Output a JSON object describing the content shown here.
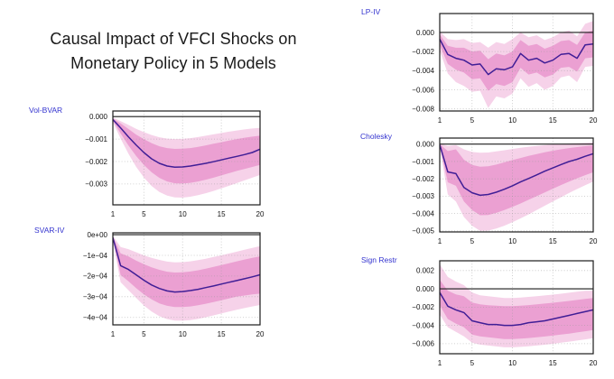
{
  "title": {
    "lines": [
      "Causal Impact of VFCI Shocks on",
      "Monetary Policy in 5 Models"
    ]
  },
  "colors": {
    "band_outer": "#f6d2e9",
    "band_inner": "#eba0d2",
    "median_line": "#401e96",
    "model_label": "#3434cf",
    "axis_frame": "#1b1b1b",
    "grid": "#9a9a9a",
    "tick_text": "#111111",
    "title_text": "#191919"
  },
  "x_values": [
    1,
    2,
    3,
    4,
    5,
    6,
    7,
    8,
    9,
    10,
    11,
    12,
    13,
    14,
    15,
    16,
    17,
    18,
    19,
    20
  ],
  "xtick_values": [
    1,
    5,
    10,
    15,
    20
  ],
  "xtick_labels": [
    "1",
    "5",
    "10",
    "15",
    "20"
  ],
  "chart_data": [
    {
      "type": "line",
      "model": "Vol-BVAR",
      "label": "Vol-BVAR",
      "ylim": [
        0.00025,
        -0.00393
      ],
      "ytick_values": [
        0,
        -0.001,
        -0.002,
        -0.003
      ],
      "ytick_labels": [
        "0.000",
        "−0.001",
        "−0.002",
        "−0.003"
      ],
      "series": {
        "median": [
          -0.00013,
          -0.0005,
          -0.0009,
          -0.00126,
          -0.0016,
          -0.00188,
          -0.00208,
          -0.0022,
          -0.00225,
          -0.00224,
          -0.0022,
          -0.00214,
          -0.00208,
          -0.00201,
          -0.00193,
          -0.00185,
          -0.00177,
          -0.00169,
          -0.0016,
          -0.00145
        ],
        "inner_band_upper": [
          -8e-05,
          -0.0003,
          -0.00055,
          -0.0008,
          -0.001,
          -0.00118,
          -0.00132,
          -0.0014,
          -0.00144,
          -0.00143,
          -0.0014,
          -0.00135,
          -0.00128,
          -0.00121,
          -0.00114,
          -0.00107,
          -0.001,
          -0.00094,
          -0.00089,
          -0.00085
        ],
        "inner_band_lower": [
          -0.00018,
          -0.00075,
          -0.00128,
          -0.00175,
          -0.00215,
          -0.00248,
          -0.00273,
          -0.00289,
          -0.00297,
          -0.00298,
          -0.00295,
          -0.00289,
          -0.00281,
          -0.00272,
          -0.00262,
          -0.00252,
          -0.00242,
          -0.00233,
          -0.00224,
          -0.00215
        ],
        "outer_band_upper": [
          -4e-05,
          -0.0002,
          -0.00037,
          -0.00054,
          -0.00069,
          -0.00082,
          -0.00092,
          -0.00098,
          -0.001,
          -0.00099,
          -0.00096,
          -0.00091,
          -0.00085,
          -0.00079,
          -0.00073,
          -0.00067,
          -0.00062,
          -0.00057,
          -0.00053,
          -0.0005
        ],
        "outer_band_lower": [
          -0.00024,
          -0.00098,
          -0.00165,
          -0.00223,
          -0.00271,
          -0.00309,
          -0.00336,
          -0.00352,
          -0.0036,
          -0.00361,
          -0.00357,
          -0.0035,
          -0.00341,
          -0.00331,
          -0.0032,
          -0.00308,
          -0.00296,
          -0.00284,
          -0.00272,
          -0.0026
        ]
      }
    },
    {
      "type": "line",
      "model": "SVAR-IV",
      "label": "SVAR-IV",
      "ylim": [
        9e-06,
        -0.000436
      ],
      "ytick_values": [
        0,
        -0.0001,
        -0.0002,
        -0.0003,
        -0.0004
      ],
      "ytick_labels": [
        "0e+00",
        "−1e−04",
        "−2e−04",
        "−3e−04",
        "−4e−04"
      ],
      "series": {
        "median": [
          -1.5e-05,
          -0.00015,
          -0.000168,
          -0.000194,
          -0.00022,
          -0.000243,
          -0.00026,
          -0.000272,
          -0.000277,
          -0.000275,
          -0.00027,
          -0.000264,
          -0.000256,
          -0.000248,
          -0.000239,
          -0.00023,
          -0.000222,
          -0.000213,
          -0.000204,
          -0.000194
        ],
        "inner_band_upper": [
          -1e-05,
          -9e-05,
          -0.000105,
          -0.000125,
          -0.000143,
          -0.000158,
          -0.00017,
          -0.000179,
          -0.000183,
          -0.000182,
          -0.000178,
          -0.000172,
          -0.000164,
          -0.000156,
          -0.000147,
          -0.000138,
          -0.000129,
          -0.00012,
          -0.000112,
          -0.000105
        ],
        "inner_band_lower": [
          -2e-05,
          -0.000195,
          -0.000225,
          -0.000258,
          -0.000288,
          -0.000313,
          -0.000332,
          -0.000344,
          -0.00035,
          -0.00035,
          -0.000347,
          -0.000341,
          -0.000334,
          -0.000326,
          -0.000317,
          -0.000308,
          -0.000299,
          -0.000294,
          -0.000289,
          -0.000285
        ],
        "outer_band_upper": [
          -5e-06,
          -6e-05,
          -7e-05,
          -8.5e-05,
          -0.0001,
          -0.000112,
          -0.000122,
          -0.00013,
          -0.000134,
          -0.000133,
          -0.000129,
          -0.000123,
          -0.000116,
          -0.000108,
          -0.0001,
          -9.1e-05,
          -8.2e-05,
          -7.3e-05,
          -6.4e-05,
          -5.5e-05
        ],
        "outer_band_lower": [
          -3e-05,
          -0.00023,
          -0.000268,
          -0.000305,
          -0.000342,
          -0.000372,
          -0.000394,
          -0.000408,
          -0.000415,
          -0.000416,
          -0.000413,
          -0.000407,
          -0.000399,
          -0.00039,
          -0.000381,
          -0.000372,
          -0.000363,
          -0.000355,
          -0.000347,
          -0.00034
        ]
      }
    },
    {
      "type": "line",
      "model": "LP-IV",
      "label": "LP-IV",
      "ylim": [
        0.00198,
        -0.00822
      ],
      "ytick_values": [
        0,
        -0.002,
        -0.004,
        -0.006,
        -0.008
      ],
      "ytick_labels": [
        "0.000",
        "−0.002",
        "−0.004",
        "−0.006",
        "−0.008"
      ],
      "series": {
        "median": [
          -0.0007,
          -0.0023,
          -0.0027,
          -0.0029,
          -0.0034,
          -0.0033,
          -0.0044,
          -0.0038,
          -0.0039,
          -0.0036,
          -0.0022,
          -0.0029,
          -0.0027,
          -0.0032,
          -0.0029,
          -0.0023,
          -0.0022,
          -0.0027,
          -0.0013,
          -0.0012
        ],
        "inner_band_upper": [
          -0.0002,
          -0.0014,
          -0.0016,
          -0.0016,
          -0.002,
          -0.0019,
          -0.0028,
          -0.0022,
          -0.0024,
          -0.002,
          -0.0008,
          -0.0014,
          -0.0012,
          -0.0017,
          -0.0014,
          -0.0009,
          -0.0008,
          -0.0013,
          0.0,
          0.0002
        ],
        "inner_band_lower": [
          -0.0013,
          -0.0033,
          -0.0039,
          -0.0042,
          -0.0049,
          -0.0048,
          -0.0061,
          -0.0054,
          -0.0056,
          -0.0052,
          -0.0037,
          -0.0044,
          -0.0042,
          -0.0047,
          -0.0044,
          -0.0037,
          -0.0036,
          -0.0041,
          -0.0027,
          -0.0026
        ],
        "outer_band_upper": [
          0.0001,
          -0.0007,
          -0.0008,
          -0.0007,
          -0.0011,
          -0.001,
          -0.0016,
          -0.001,
          -0.0012,
          -0.0007,
          0.0,
          -0.0005,
          -0.0003,
          -0.0008,
          -0.0005,
          0.0,
          0.0002,
          -0.0004,
          0.0009,
          0.0012
        ],
        "outer_band_lower": [
          -0.0019,
          -0.0043,
          -0.0052,
          -0.0056,
          -0.0062,
          -0.0061,
          -0.0079,
          -0.0067,
          -0.0069,
          -0.0064,
          -0.0048,
          -0.0057,
          -0.0053,
          -0.006,
          -0.0056,
          -0.0047,
          -0.0045,
          -0.0052,
          -0.0036,
          -0.0035
        ]
      }
    },
    {
      "type": "line",
      "model": "Cholesky",
      "label": "Cholesky",
      "ylim": [
        0.00035,
        -0.00506
      ],
      "ytick_values": [
        0,
        -0.001,
        -0.002,
        -0.003,
        -0.004,
        -0.005
      ],
      "ytick_labels": [
        "0.000",
        "−0.001",
        "−0.002",
        "−0.003",
        "−0.004",
        "−0.005"
      ],
      "series": {
        "median": [
          -3e-05,
          -0.0016,
          -0.0017,
          -0.0025,
          -0.0028,
          -0.00295,
          -0.0029,
          -0.00277,
          -0.0026,
          -0.0024,
          -0.00218,
          -0.00198,
          -0.00177,
          -0.00156,
          -0.00137,
          -0.00118,
          -0.001,
          -0.00087,
          -0.0007,
          -0.00055
        ],
        "inner_band_upper": [
          0.0,
          -0.0004,
          -0.0003,
          -0.0009,
          -0.0012,
          -0.0013,
          -0.00128,
          -0.00118,
          -0.00105,
          -0.00092,
          -0.0008,
          -0.00068,
          -0.00057,
          -0.00047,
          -0.00038,
          -0.0003,
          -0.00023,
          -0.00017,
          -0.00012,
          -8e-05
        ],
        "inner_band_lower": [
          -0.0001,
          -0.0022,
          -0.0024,
          -0.0033,
          -0.0038,
          -0.0041,
          -0.00408,
          -0.00396,
          -0.0038,
          -0.00362,
          -0.00342,
          -0.00321,
          -0.003,
          -0.00278,
          -0.00257,
          -0.00236,
          -0.00216,
          -0.00197,
          -0.00179,
          -0.00162
        ],
        "outer_band_upper": [
          2e-05,
          -0.0001,
          -5e-05,
          -0.0003,
          -0.00045,
          -0.0005,
          -0.00048,
          -0.00042,
          -0.00035,
          -0.00028,
          -0.00021,
          -0.00015,
          -0.0001,
          -6e-05,
          -2e-05,
          1e-05,
          4e-05,
          6e-05,
          8e-05,
          0.0001
        ],
        "outer_band_lower": [
          -0.00015,
          -0.0029,
          -0.0033,
          -0.0042,
          -0.0047,
          -0.005,
          -0.00498,
          -0.00487,
          -0.0047,
          -0.0045,
          -0.00428,
          -0.00405,
          -0.0038,
          -0.00355,
          -0.0033,
          -0.00306,
          -0.00282,
          -0.00259,
          -0.00237,
          -0.00216
        ]
      }
    },
    {
      "type": "line",
      "model": "Sign Restr",
      "label": "Sign Restr",
      "ylim": [
        0.00307,
        -0.0071
      ],
      "ytick_values": [
        0.002,
        0,
        -0.002,
        -0.004,
        -0.006
      ],
      "ytick_labels": [
        "0.002",
        "0.000",
        "−0.002",
        "−0.004",
        "−0.006"
      ],
      "series": {
        "median": [
          -0.0004,
          -0.0019,
          -0.0023,
          -0.0026,
          -0.0035,
          -0.0037,
          -0.0039,
          -0.0039,
          -0.004,
          -0.004,
          -0.0039,
          -0.0037,
          -0.0036,
          -0.0035,
          -0.0033,
          -0.0031,
          -0.0029,
          -0.0027,
          -0.0025,
          -0.0023
        ],
        "inner_band_upper": [
          0.001,
          -0.0002,
          -0.0006,
          -0.0008,
          -0.0015,
          -0.0017,
          -0.0018,
          -0.00185,
          -0.0019,
          -0.0019,
          -0.00185,
          -0.00178,
          -0.0017,
          -0.00161,
          -0.00152,
          -0.00142,
          -0.00132,
          -0.00122,
          -0.00111,
          -0.001
        ],
        "inner_band_lower": [
          -0.0018,
          -0.0033,
          -0.0038,
          -0.0042,
          -0.005,
          -0.0052,
          -0.0053,
          -0.0054,
          -0.0055,
          -0.0055,
          -0.00545,
          -0.00538,
          -0.0053,
          -0.00521,
          -0.00512,
          -0.00501,
          -0.0049,
          -0.00477,
          -0.00464,
          -0.0045
        ],
        "outer_band_upper": [
          0.0027,
          0.0013,
          0.0008,
          0.0004,
          -0.0004,
          -0.0007,
          -0.0008,
          -0.0009,
          -0.001,
          -0.001,
          -0.00095,
          -0.00088,
          -0.0008,
          -0.00072,
          -0.00063,
          -0.00053,
          -0.00043,
          -0.00032,
          -0.00021,
          -0.0002
        ],
        "outer_band_lower": [
          -0.0028,
          -0.0042,
          -0.0047,
          -0.0052,
          -0.0059,
          -0.0061,
          -0.0062,
          -0.0063,
          -0.0064,
          -0.0064,
          -0.00635,
          -0.00628,
          -0.0062,
          -0.00611,
          -0.00601,
          -0.0059,
          -0.00578,
          -0.00566,
          -0.00553,
          -0.0054
        ]
      }
    }
  ]
}
